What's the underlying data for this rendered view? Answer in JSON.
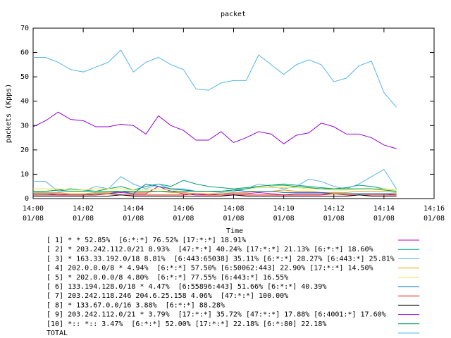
{
  "chart_data": {
    "type": "line",
    "title": "packet",
    "xlabel": "Time",
    "ylabel": "packets (Kpps)",
    "x": [
      0,
      0.5,
      1,
      1.5,
      2,
      2.5,
      3,
      3.5,
      4,
      4.5,
      5,
      5.5,
      6,
      6.5,
      7,
      7.5,
      8,
      8.5,
      9,
      9.5,
      10,
      10.5,
      11,
      11.5,
      12,
      12.5,
      13,
      13.5,
      14,
      14.5
    ],
    "xlim": [
      0,
      16
    ],
    "xticks": [
      {
        "value": 0,
        "label": "14:00 01/08"
      },
      {
        "value": 2,
        "label": "14:02 01/08"
      },
      {
        "value": 4,
        "label": "14:04 01/08"
      },
      {
        "value": 6,
        "label": "14:06 01/08"
      },
      {
        "value": 8,
        "label": "14:08 01/08"
      },
      {
        "value": 10,
        "label": "14:10 01/08"
      },
      {
        "value": 12,
        "label": "14:12 01/08"
      },
      {
        "value": 14,
        "label": "14:14 01/08"
      },
      {
        "value": 16,
        "label": "14:16 01/08"
      }
    ],
    "ylim": [
      0,
      70
    ],
    "yticks": [
      0,
      10,
      20,
      30,
      40,
      50,
      60,
      70
    ],
    "series": [
      {
        "name": "[ 1] * * 52.85%  [6:*:*] 76.52% [17:*:*] 18.91%",
        "color": "#c000c0",
        "values": [
          2,
          2,
          2,
          1.5,
          1.5,
          2,
          2,
          2.5,
          2,
          2,
          5,
          3,
          2,
          1.5,
          1.5,
          2,
          2,
          2,
          2.5,
          2,
          1.5,
          2,
          2,
          2,
          2,
          2,
          2,
          2,
          2,
          1.5
        ]
      },
      {
        "name": "[ 2] * 203.242.112.0/21 8.93%  [47:*:*] 40.24% [17:*:*] 21.13% [6:*:*] 18.60%",
        "color": "#009e73",
        "values": [
          3,
          3,
          3.5,
          4,
          3.5,
          3,
          4,
          5,
          3.5,
          5,
          6,
          5,
          7.5,
          6,
          5,
          4.5,
          4,
          4.5,
          5,
          5.5,
          6,
          5.5,
          5,
          4.5,
          4,
          4.5,
          5.5,
          5,
          4,
          3.5
        ]
      },
      {
        "name": "[ 3] * 163.33.192.0/18 8.81%  [6:443:65038] 35.11% [6:*:*] 28.27% [6:443:*] 25.81%",
        "color": "#56b4e9",
        "values": [
          7,
          7,
          3,
          3,
          3,
          5,
          4,
          9,
          6,
          4,
          6,
          4,
          4,
          3,
          3,
          2.5,
          3,
          4,
          6,
          5,
          4,
          5,
          8,
          7,
          5,
          4,
          6,
          9,
          12,
          4
        ]
      },
      {
        "name": "[ 4] 202.0.0.0/8 * 4.94%  [6:*:*] 57.50% [6:50062:443] 22.90% [17:*:*] 14.50%",
        "color": "#e69f00",
        "values": [
          2.5,
          2.5,
          2.5,
          2,
          2,
          2.5,
          2.5,
          3,
          2.5,
          2.5,
          3,
          2.5,
          2.5,
          2,
          2,
          2,
          2.5,
          2.5,
          3,
          3,
          3.5,
          3,
          3,
          2.5,
          2.5,
          2.5,
          3,
          3,
          3,
          2.5
        ]
      },
      {
        "name": "[ 5] * 202.0.0.0/8 4.80%  [6:*:*] 77.55% [6:443:*] 16.55%",
        "color": "#f0e442",
        "values": [
          4,
          4,
          4,
          3.5,
          3.5,
          4,
          4,
          4,
          3.5,
          3.5,
          4,
          3.5,
          3.5,
          3,
          3,
          3,
          3.5,
          4,
          4.5,
          4.5,
          4.5,
          4.5,
          4,
          4,
          3.5,
          3.5,
          4,
          4,
          4,
          3.5
        ]
      },
      {
        "name": "[ 6] 133.194.128.0/18 * 4.47%  [6:55896:443] 51.66% [6:*:*] 40.39%",
        "color": "#0072b2",
        "values": [
          2,
          2,
          1.5,
          1.5,
          1.5,
          2,
          2,
          3,
          2,
          6,
          5,
          4,
          3.5,
          3,
          3,
          3,
          3.5,
          3,
          3,
          3,
          2.5,
          2.5,
          2.5,
          2.5,
          2,
          2,
          2,
          2,
          2,
          2
        ]
      },
      {
        "name": "[ 7] 203.242.118.246 204.6.25.158 4.06%  [47:*:*] 100.00%",
        "color": "#e51e10",
        "values": [
          1.5,
          1.5,
          1.5,
          1.5,
          1.5,
          1.5,
          2,
          1.5,
          1.5,
          1.5,
          1.5,
          1.5,
          1.5,
          2,
          1.5,
          1.5,
          1.5,
          1.5,
          1.5,
          1.5,
          1.5,
          1.5,
          1.5,
          1.5,
          2,
          1.5,
          1.5,
          1.5,
          1.5,
          1.5
        ]
      },
      {
        "name": "[ 8] * 133.67.0.0/16 3.88%  [6:*:*] 88.28%",
        "color": "#000000",
        "values": [
          1,
          1,
          1,
          1,
          1,
          1,
          1,
          1.5,
          1,
          1,
          1,
          1,
          1,
          1,
          1,
          1,
          1.5,
          1,
          1,
          1,
          1,
          1,
          1,
          1,
          1,
          1,
          1.5,
          1,
          1,
          1
        ]
      },
      {
        "name": "[ 9] 203.242.112.0/21 * 3.79%  [17:*:*] 35.72% [47:*:*] 17.88% [6:4001:*] 17.60%",
        "color": "#9400d3",
        "values": [
          29.5,
          32,
          35.5,
          32.5,
          32,
          29.5,
          29.5,
          30.5,
          30,
          26.5,
          34,
          30,
          28,
          24,
          24,
          27.5,
          23,
          25,
          27.5,
          26.5,
          22.5,
          26,
          27,
          31,
          29.5,
          26.5,
          26.5,
          25,
          22,
          20.5
        ]
      },
      {
        "name": "[10] *:: *:: 3.47%  [6:*:*] 52.00% [17:*:*] 22.18% [6:*:80] 22.18%",
        "color": "#00a050",
        "values": [
          3,
          3,
          3.5,
          3,
          3,
          3,
          3,
          3,
          3,
          3,
          3,
          3,
          3,
          3,
          3,
          3,
          3.5,
          4,
          5,
          5.5,
          5.5,
          5,
          4.5,
          4,
          4,
          4,
          4,
          4,
          3.5,
          3
        ]
      },
      {
        "name": "TOTAL",
        "color": "#56b4e9",
        "values": [
          58,
          58,
          56,
          53,
          52,
          54,
          56,
          61,
          52,
          56,
          58,
          55,
          53,
          45,
          44.5,
          47.5,
          48.5,
          48.5,
          59,
          55,
          51,
          55,
          57,
          55,
          48,
          49.5,
          54.5,
          56.5,
          43.5,
          37.5
        ]
      }
    ]
  }
}
